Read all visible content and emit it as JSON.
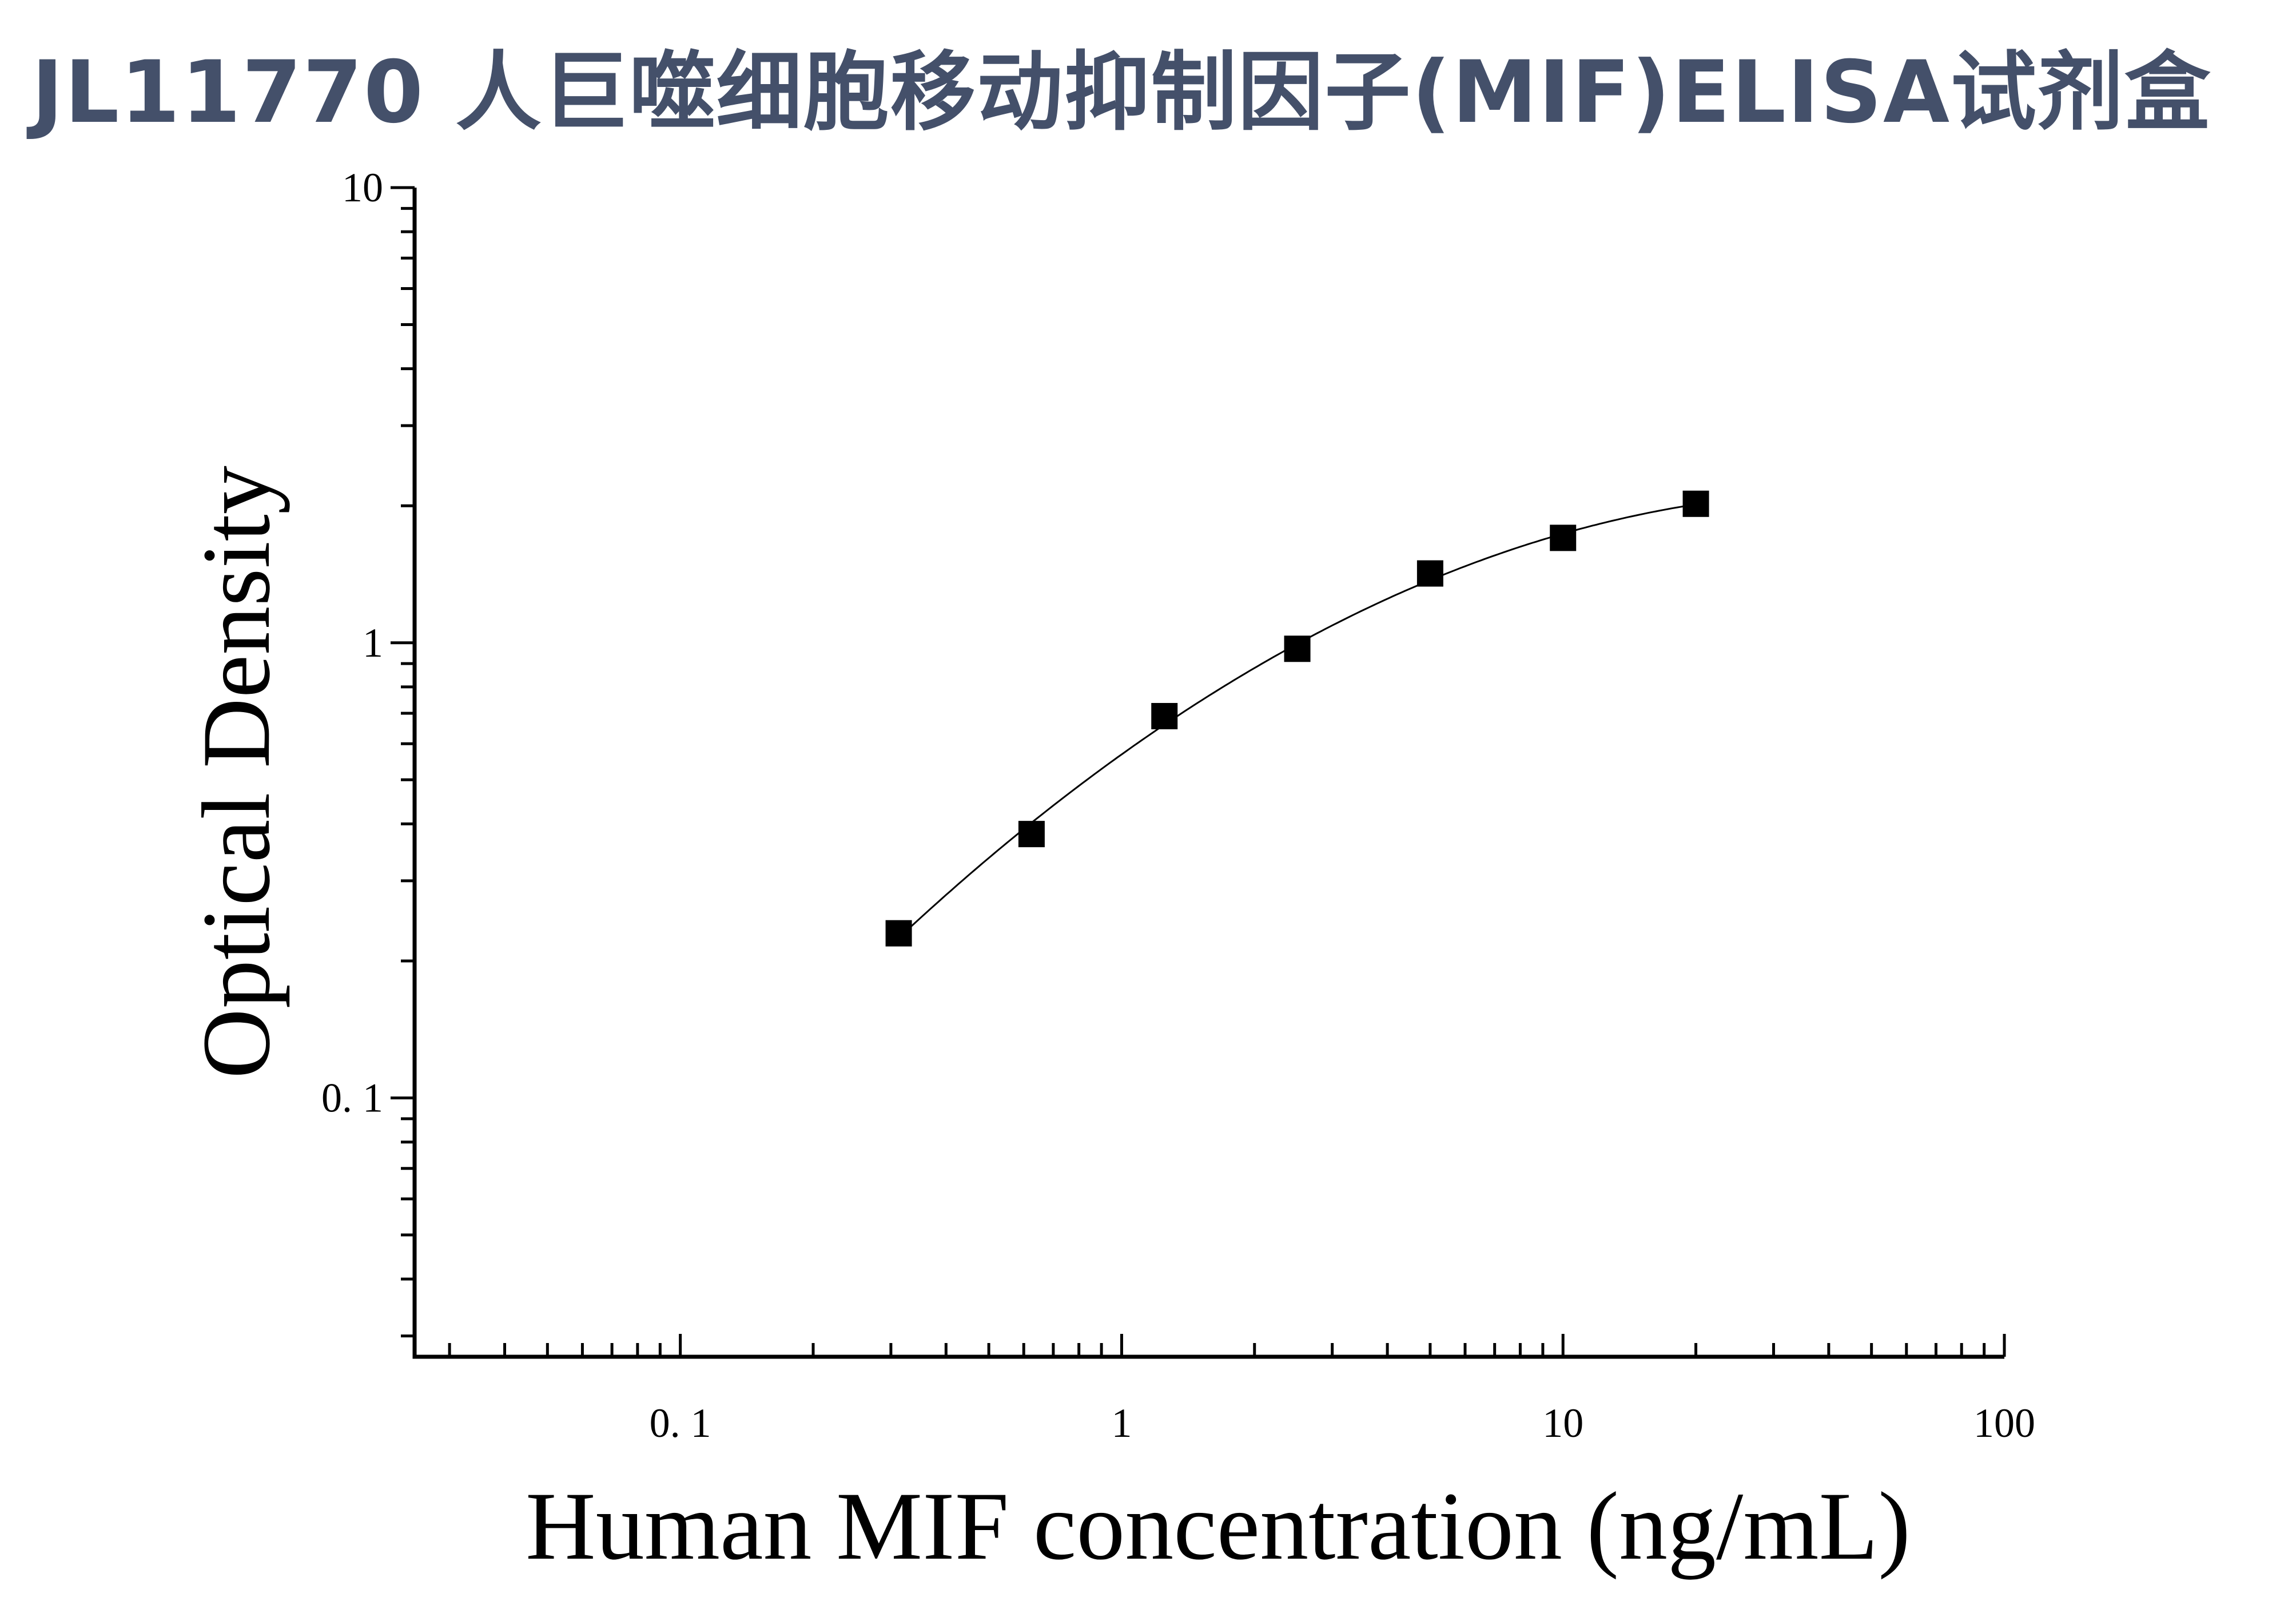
{
  "title": "JL11770 人巨噬细胞移动抑制因子(MIF)ELISA试剂盒",
  "colors": {
    "title": "#44506a",
    "marks": "#000000"
  },
  "chart_data": {
    "type": "scatter",
    "xlabel": "Human MIF concentration (ng/mL)",
    "ylabel": "Optical Density",
    "xscale": "log",
    "yscale": "log",
    "xlim": [
      0.025,
      100
    ],
    "ylim": [
      0.027,
      10
    ],
    "x_ticks": [
      0.1,
      1,
      10,
      100
    ],
    "x_tick_labels": [
      "0. 1",
      "1",
      "10",
      "100"
    ],
    "y_ticks": [
      0.1,
      1,
      10
    ],
    "y_tick_labels": [
      "0. 1",
      "1",
      "10"
    ],
    "grid": false,
    "legend": "none",
    "fit_curve": true,
    "series": [
      {
        "x": [
          0.3125,
          0.625,
          1.25,
          2.5,
          5,
          10,
          20
        ],
        "y": [
          0.23,
          0.38,
          0.69,
          0.97,
          1.42,
          1.7,
          2.02
        ]
      }
    ]
  }
}
